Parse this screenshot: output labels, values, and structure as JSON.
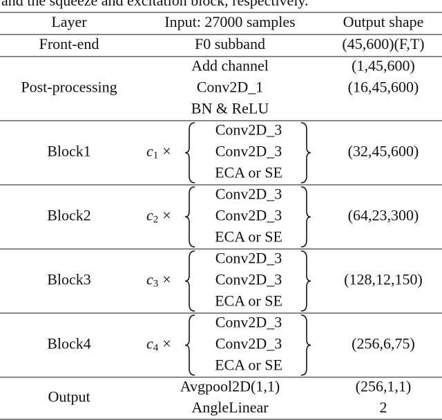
{
  "caption": "and the squeeze and excitation block, respectively.",
  "table": {
    "header": [
      "Layer",
      "Input: 27000 samples",
      "Output shape"
    ],
    "rows": [
      {
        "layer": "Front-end",
        "input": [
          "F0 subband"
        ],
        "output": [
          "(45,600)(F,T)"
        ]
      },
      {
        "layer": "Post-processing",
        "input": [
          "Add channel",
          "Conv2D_1",
          "BN & ReLU"
        ],
        "output": [
          "(1,45,600)",
          "(16,45,600)"
        ]
      },
      {
        "layer": "Block1",
        "repeat": {
          "var": "c",
          "sub": "1",
          "op": "×"
        },
        "input": [
          "Conv2D_3",
          "Conv2D_3",
          "ECA or SE"
        ],
        "output": [
          "(32,45,600)"
        ]
      },
      {
        "layer": "Block2",
        "repeat": {
          "var": "c",
          "sub": "2",
          "op": "×"
        },
        "input": [
          "Conv2D_3",
          "Conv2D_3",
          "ECA or SE"
        ],
        "output": [
          "(64,23,300)"
        ]
      },
      {
        "layer": "Block3",
        "repeat": {
          "var": "c",
          "sub": "3",
          "op": "×"
        },
        "input": [
          "Conv2D_3",
          "Conv2D_3",
          "ECA or SE"
        ],
        "output": [
          "(128,12,150)"
        ]
      },
      {
        "layer": "Block4",
        "repeat": {
          "var": "c",
          "sub": "4",
          "op": "×"
        },
        "input": [
          "Conv2D_3",
          "Conv2D_3",
          "ECA or SE"
        ],
        "output": [
          "(256,6,75)"
        ]
      },
      {
        "layer": "Output",
        "input": [
          "Avgpool2D(1,1)",
          "AngleLinear"
        ],
        "output": [
          "(256,1,1)",
          "2"
        ]
      }
    ]
  }
}
